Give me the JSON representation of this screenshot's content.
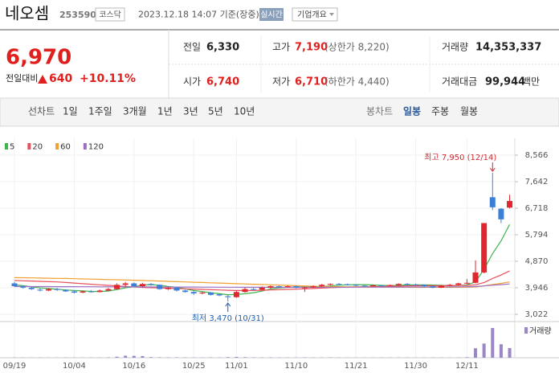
{
  "header": {
    "name": "네오셈",
    "code": "253590",
    "market": "코스닥",
    "time": "2023.12.18 14:07 기준(장중)",
    "realtime": "실시간",
    "company_info": "기업개요"
  },
  "quote": {
    "price": "6,970",
    "change_label": "전일대비",
    "change": "640",
    "change_rate": "+10.11%",
    "fields": [
      {
        "label": "전일",
        "value": "6,330"
      },
      {
        "label": "고가",
        "value": "7,190",
        "note": "(상한가 8,220)"
      },
      {
        "label": "거래량",
        "value": "14,353,337"
      },
      {
        "label": "시가",
        "value": "6,740"
      },
      {
        "label": "저가",
        "value": "6,710",
        "note": "(하한가 4,440)"
      },
      {
        "label": "거래대금",
        "value": "99,944",
        "unit": "백만"
      }
    ]
  },
  "tabs": {
    "line_chart": "선차트",
    "line_periods": [
      "1일",
      "1주일",
      "3개월",
      "1년",
      "3년",
      "5년",
      "10년"
    ],
    "candle_chart": "봉차트",
    "candle_periods": [
      "일봉",
      "주봉",
      "월봉"
    ]
  },
  "chart_data": {
    "type": "candlestick",
    "categories": [
      "09/19",
      null,
      null,
      null,
      null,
      null,
      null,
      "10/04",
      null,
      null,
      null,
      null,
      null,
      null,
      "10/16",
      null,
      null,
      null,
      null,
      null,
      null,
      "10/25",
      null,
      null,
      null,
      null,
      "11/01",
      null,
      null,
      null,
      null,
      null,
      null,
      "11/10",
      null,
      null,
      null,
      null,
      null,
      null,
      "11/21",
      null,
      null,
      null,
      null,
      null,
      null,
      "11/30",
      null,
      null,
      null,
      null,
      null,
      "12/11",
      null,
      null,
      null,
      null,
      null
    ],
    "open": [
      4100,
      3990,
      3950,
      3880,
      3850,
      3900,
      3870,
      3820,
      3780,
      3820,
      3800,
      3850,
      3900,
      4050,
      4100,
      4000,
      4080,
      4050,
      3900,
      3950,
      3850,
      3800,
      3750,
      3780,
      3720,
      3650,
      3620,
      3800,
      3900,
      3880,
      3950,
      4000,
      3980,
      4000,
      3950,
      3960,
      4000,
      4050,
      4080,
      4070,
      4050,
      4020,
      4000,
      4030,
      4010,
      4040,
      4080,
      4060,
      4050,
      4000,
      3950,
      4020,
      4050,
      4100,
      4120,
      4480,
      7100,
      6700,
      6740
    ],
    "high": [
      4150,
      4020,
      3980,
      3920,
      3930,
      3940,
      3890,
      3850,
      3850,
      3860,
      3880,
      3940,
      4100,
      4150,
      4130,
      4120,
      4110,
      4060,
      3980,
      3970,
      3880,
      3830,
      3800,
      3790,
      3740,
      3700,
      3850,
      3950,
      3940,
      3990,
      4030,
      4020,
      4030,
      4020,
      3990,
      4030,
      4080,
      4100,
      4110,
      4090,
      4060,
      4040,
      4050,
      4040,
      4060,
      4100,
      4110,
      4090,
      4060,
      4010,
      4040,
      4080,
      4120,
      4250,
      4900,
      6200,
      7950,
      6720,
      7190
    ],
    "low": [
      3980,
      3920,
      3870,
      3820,
      3830,
      3840,
      3800,
      3750,
      3760,
      3780,
      3790,
      3830,
      3890,
      4000,
      3980,
      3970,
      4020,
      3880,
      3870,
      3820,
      3780,
      3700,
      3720,
      3680,
      3650,
      3470,
      3600,
      3780,
      3850,
      3860,
      3920,
      3950,
      3960,
      3930,
      3800,
      3940,
      3980,
      4030,
      4050,
      4030,
      4000,
      3980,
      3990,
      3990,
      4000,
      4030,
      4040,
      4030,
      3970,
      3930,
      3940,
      4010,
      4040,
      4080,
      4100,
      4450,
      6650,
      6200,
      6710
    ],
    "close": [
      4000,
      3950,
      3900,
      3850,
      3900,
      3870,
      3820,
      3780,
      3820,
      3800,
      3850,
      3900,
      4050,
      4100,
      4000,
      4080,
      4050,
      3900,
      3950,
      3850,
      3800,
      3750,
      3780,
      3700,
      3680,
      3620,
      3800,
      3900,
      3880,
      3950,
      4000,
      3980,
      4000,
      3950,
      3960,
      4000,
      4050,
      4080,
      4070,
      4050,
      4020,
      4000,
      4030,
      4010,
      4040,
      4080,
      4060,
      4050,
      4000,
      3950,
      4020,
      4050,
      4100,
      4120,
      4480,
      6200,
      6750,
      6330,
      6970
    ],
    "up_color": "#e0262e",
    "down_color": "#3c7fd8",
    "ylim": [
      3022,
      8566
    ],
    "yticks": [
      {
        "value": 8566,
        "label": "8,566"
      },
      {
        "value": 7642,
        "label": "7,642"
      },
      {
        "value": 6718,
        "label": "6,718"
      },
      {
        "value": 5794,
        "label": "5,794"
      },
      {
        "value": 4870,
        "label": "4,870"
      },
      {
        "value": 3946,
        "label": "3,946"
      },
      {
        "value": 3022,
        "label": "3,022"
      }
    ],
    "grid": true,
    "moving_averages": [
      {
        "name": "5",
        "color": "#3cb44b",
        "values": [
          4050,
          4020,
          3980,
          3940,
          3920,
          3895,
          3870,
          3850,
          3840,
          3820,
          3815,
          3835,
          3885,
          3945,
          3980,
          4045,
          4055,
          4035,
          3995,
          3965,
          3910,
          3850,
          3815,
          3775,
          3740,
          3705,
          3715,
          3740,
          3775,
          3830,
          3905,
          3940,
          3960,
          3975,
          3978,
          3980,
          3990,
          4010,
          4035,
          4050,
          4055,
          4055,
          4045,
          4030,
          4020,
          4030,
          4045,
          4050,
          4050,
          4040,
          4030,
          4015,
          4025,
          4050,
          4150,
          4590,
          5140,
          5580,
          6150
        ]
      },
      {
        "name": "20",
        "color": "#e8505b",
        "values": [
          4200,
          4190,
          4180,
          4170,
          4160,
          4150,
          4130,
          4110,
          4090,
          4070,
          4050,
          4030,
          4010,
          3990,
          3975,
          3960,
          3950,
          3940,
          3930,
          3920,
          3910,
          3900,
          3890,
          3880,
          3870,
          3860,
          3850,
          3850,
          3855,
          3860,
          3870,
          3880,
          3890,
          3900,
          3910,
          3920,
          3935,
          3950,
          3960,
          3970,
          3980,
          3985,
          3990,
          3995,
          4000,
          4005,
          4010,
          4015,
          4020,
          4020,
          4020,
          4020,
          4025,
          4030,
          4050,
          4130,
          4270,
          4390,
          4530
        ]
      },
      {
        "name": "60",
        "color": "#f0a030",
        "values": [
          4300,
          4295,
          4290,
          4285,
          4280,
          4275,
          4270,
          4262,
          4255,
          4248,
          4240,
          4232,
          4225,
          4218,
          4210,
          4200,
          4190,
          4180,
          4170,
          4160,
          4150,
          4140,
          4130,
          4120,
          4110,
          4100,
          4090,
          4080,
          4070,
          4060,
          4050,
          4040,
          4030,
          4020,
          4010,
          4000,
          3995,
          3990,
          3985,
          3980,
          3978,
          3975,
          3972,
          3970,
          3968,
          3966,
          3965,
          3964,
          3963,
          3962,
          3962,
          3962,
          3963,
          3965,
          3975,
          4010,
          4060,
          4100,
          4150
        ]
      },
      {
        "name": "120",
        "color": "#9b6fc4",
        "values": [
          3990,
          3990,
          3989,
          3988,
          3987,
          3986,
          3985,
          3984,
          3983,
          3982,
          3981,
          3980,
          3979,
          3978,
          3977,
          3976,
          3975,
          3974,
          3973,
          3972,
          3971,
          3970,
          3969,
          3968,
          3967,
          3966,
          3965,
          3964,
          3963,
          3962,
          3962,
          3962,
          3962,
          3962,
          3962,
          3962,
          3963,
          3964,
          3965,
          3966,
          3967,
          3968,
          3969,
          3970,
          3971,
          3972,
          3973,
          3974,
          3975,
          3976,
          3977,
          3978,
          3980,
          3982,
          3990,
          4010,
          4035,
          4055,
          4080
        ]
      }
    ],
    "volume": {
      "name": "거래량",
      "color": "#9a86c8",
      "ylim": [
        0,
        50000000
      ],
      "values": [
        400000,
        350000,
        300000,
        320000,
        280000,
        300000,
        350000,
        400000,
        300000,
        320000,
        350000,
        500000,
        1500000,
        3000000,
        2800000,
        2500000,
        900000,
        700000,
        500000,
        600000,
        400000,
        450000,
        350000,
        500000,
        400000,
        900000,
        1200000,
        800000,
        500000,
        400000,
        500000,
        400000,
        350000,
        400000,
        500000,
        350000,
        400000,
        450000,
        350000,
        300000,
        300000,
        280000,
        300000,
        320000,
        300000,
        350000,
        300000,
        280000,
        300000,
        320000,
        350000,
        300000,
        400000,
        800000,
        14000000,
        21000000,
        44000000,
        20000000,
        14353337
      ]
    },
    "annotations": {
      "high": "최고 7,950 (12/14)",
      "low": "최저 3,470 (10/31)"
    }
  }
}
